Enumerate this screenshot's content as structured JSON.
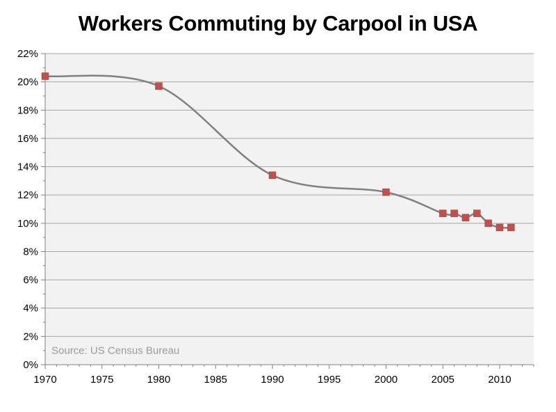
{
  "chart_data": {
    "type": "line",
    "title": "Workers Commuting by Carpool in USA",
    "xlabel": "",
    "ylabel": "",
    "source_note": "Source: US Census Bureau",
    "xlim": [
      1970,
      2013
    ],
    "ylim": [
      0,
      22
    ],
    "x_ticks": [
      1970,
      1975,
      1980,
      1985,
      1990,
      1995,
      2000,
      2005,
      2010
    ],
    "y_ticks": [
      0,
      2,
      4,
      6,
      8,
      10,
      12,
      14,
      16,
      18,
      20,
      22
    ],
    "y_tick_suffix": "%",
    "grid": true,
    "legend": "none",
    "series": [
      {
        "x": [
          1970,
          1980,
          1990,
          2000,
          2005,
          2006,
          2007,
          2008,
          2009,
          2010,
          2011
        ],
        "y": [
          20.4,
          19.7,
          13.4,
          12.2,
          10.7,
          10.7,
          10.4,
          10.7,
          10.0,
          9.7,
          9.7
        ],
        "line_color": "#808080",
        "marker_color": "#C0504D",
        "marker": "square",
        "smooth": true
      }
    ]
  },
  "colors": {
    "plot_background": "#F2F2F2",
    "gridline": "#A6A6A6",
    "axis": "#808080"
  }
}
